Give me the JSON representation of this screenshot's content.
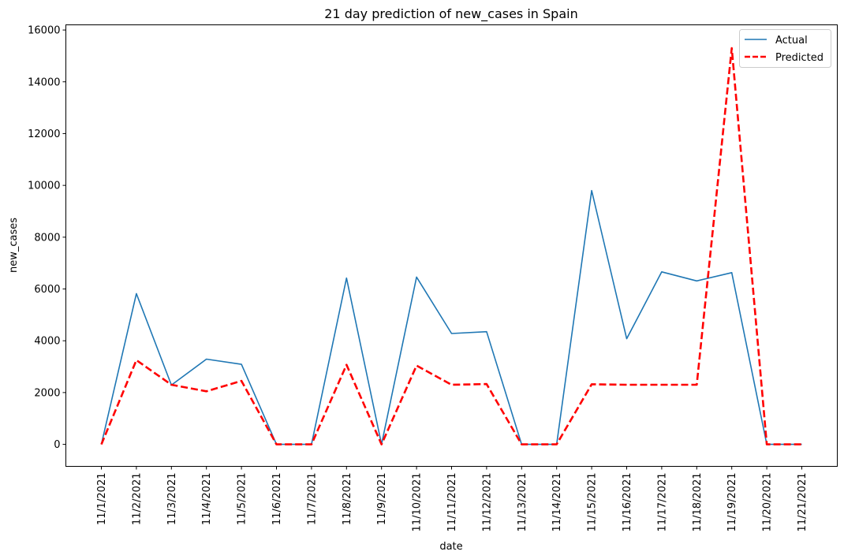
{
  "chart_data": {
    "type": "line",
    "title": "21 day prediction of new_cases in Spain",
    "xlabel": "date",
    "ylabel": "new_cases",
    "categories": [
      "11/1/2021",
      "11/2/2021",
      "11/3/2021",
      "11/4/2021",
      "11/5/2021",
      "11/6/2021",
      "11/7/2021",
      "11/8/2021",
      "11/9/2021",
      "11/10/2021",
      "11/11/2021",
      "11/12/2021",
      "11/13/2021",
      "11/14/2021",
      "11/15/2021",
      "11/16/2021",
      "11/17/2021",
      "11/18/2021",
      "11/19/2021",
      "11/20/2021",
      "11/21/2021"
    ],
    "ylim": [
      -850,
      16200
    ],
    "yticks": [
      0,
      2000,
      4000,
      6000,
      8000,
      10000,
      12000,
      14000,
      16000
    ],
    "grid": false,
    "legend_position": "top-right",
    "series": [
      {
        "name": "Actual",
        "color": "#1f77b4",
        "style": "solid",
        "values": [
          0,
          5820,
          2290,
          3290,
          3090,
          0,
          0,
          6420,
          0,
          6460,
          4280,
          4350,
          0,
          0,
          9800,
          4080,
          6660,
          6310,
          6630,
          0,
          0
        ]
      },
      {
        "name": "Predicted",
        "color": "#ff0000",
        "style": "dashed",
        "values": [
          0,
          3250,
          2300,
          2050,
          2450,
          0,
          0,
          3070,
          0,
          3040,
          2300,
          2330,
          0,
          0,
          2320,
          2300,
          2300,
          2300,
          15300,
          0,
          0
        ]
      }
    ]
  }
}
